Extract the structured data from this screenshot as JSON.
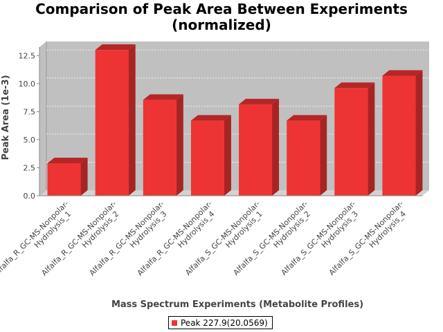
{
  "chart_data": {
    "type": "bar",
    "title": "Comparison of Peak Area Between Experiments",
    "subtitle": "(normalized)",
    "xlabel": "Mass Spectrum Experiments (Metabolite Profiles)",
    "ylabel": "Peak Area (1e-3)",
    "ylim": [
      0,
      13.75
    ],
    "yticks": [
      "0.0",
      "2.5",
      "5.0",
      "7.5",
      "10.0",
      "12.5"
    ],
    "grid": true,
    "legend_position": "bottom",
    "categories": [
      [
        "Alfalfa_R_GC-MS-Nonpolar-",
        "Hydrolysis_1"
      ],
      [
        "Alfalfa_R_GC-MS-Nonpolar-",
        "Hydrolysis_2"
      ],
      [
        "Alfalfa_R_GC-MS-Nonpolar-",
        "Hydrolysis_3"
      ],
      [
        "Alfalfa_R_GC-MS-Nonpolar-",
        "Hydrolysis_4"
      ],
      [
        "Alfalfa_S_GC-MS-Nonpolar-",
        "Hydrolysis_1"
      ],
      [
        "Alfalfa_S_GC-MS-Nonpolar-",
        "Hydrolysis_2"
      ],
      [
        "Alfalfa_S_GC-MS-Nonpolar-",
        "Hydrolysis_3"
      ],
      [
        "Alfalfa_S_GC-MS-Nonpolar-",
        "Hydrolysis_4"
      ]
    ],
    "series": [
      {
        "name": "Peak 227.9(20.0569)",
        "color": "#ee3333",
        "values": [
          2.9,
          13.0,
          8.55,
          6.7,
          8.15,
          6.7,
          9.6,
          10.7
        ]
      }
    ]
  }
}
